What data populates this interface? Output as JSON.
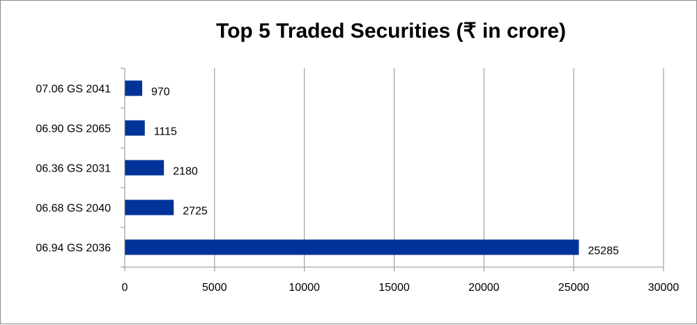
{
  "chart_data": {
    "type": "bar",
    "orientation": "horizontal",
    "title": "Top 5 Traded Securities (₹ in crore)",
    "categories": [
      "07.06 GS 2041",
      "06.90 GS 2065",
      "06.36 GS 2031",
      "06.68 GS 2040",
      "06.94 GS 2036"
    ],
    "values": [
      970,
      1115,
      2180,
      2725,
      25285
    ],
    "xlim": [
      0,
      30000
    ],
    "xticks": [
      "0",
      "5000",
      "10000",
      "15000",
      "20000",
      "25000",
      "30000"
    ],
    "xtick_values": [
      0,
      5000,
      10000,
      15000,
      20000,
      25000,
      30000
    ],
    "data_labels": [
      "970",
      "1115",
      "2180",
      "2725",
      "25285"
    ],
    "bar_color": "#003399",
    "gridlines": "vertical",
    "legend": "none"
  }
}
